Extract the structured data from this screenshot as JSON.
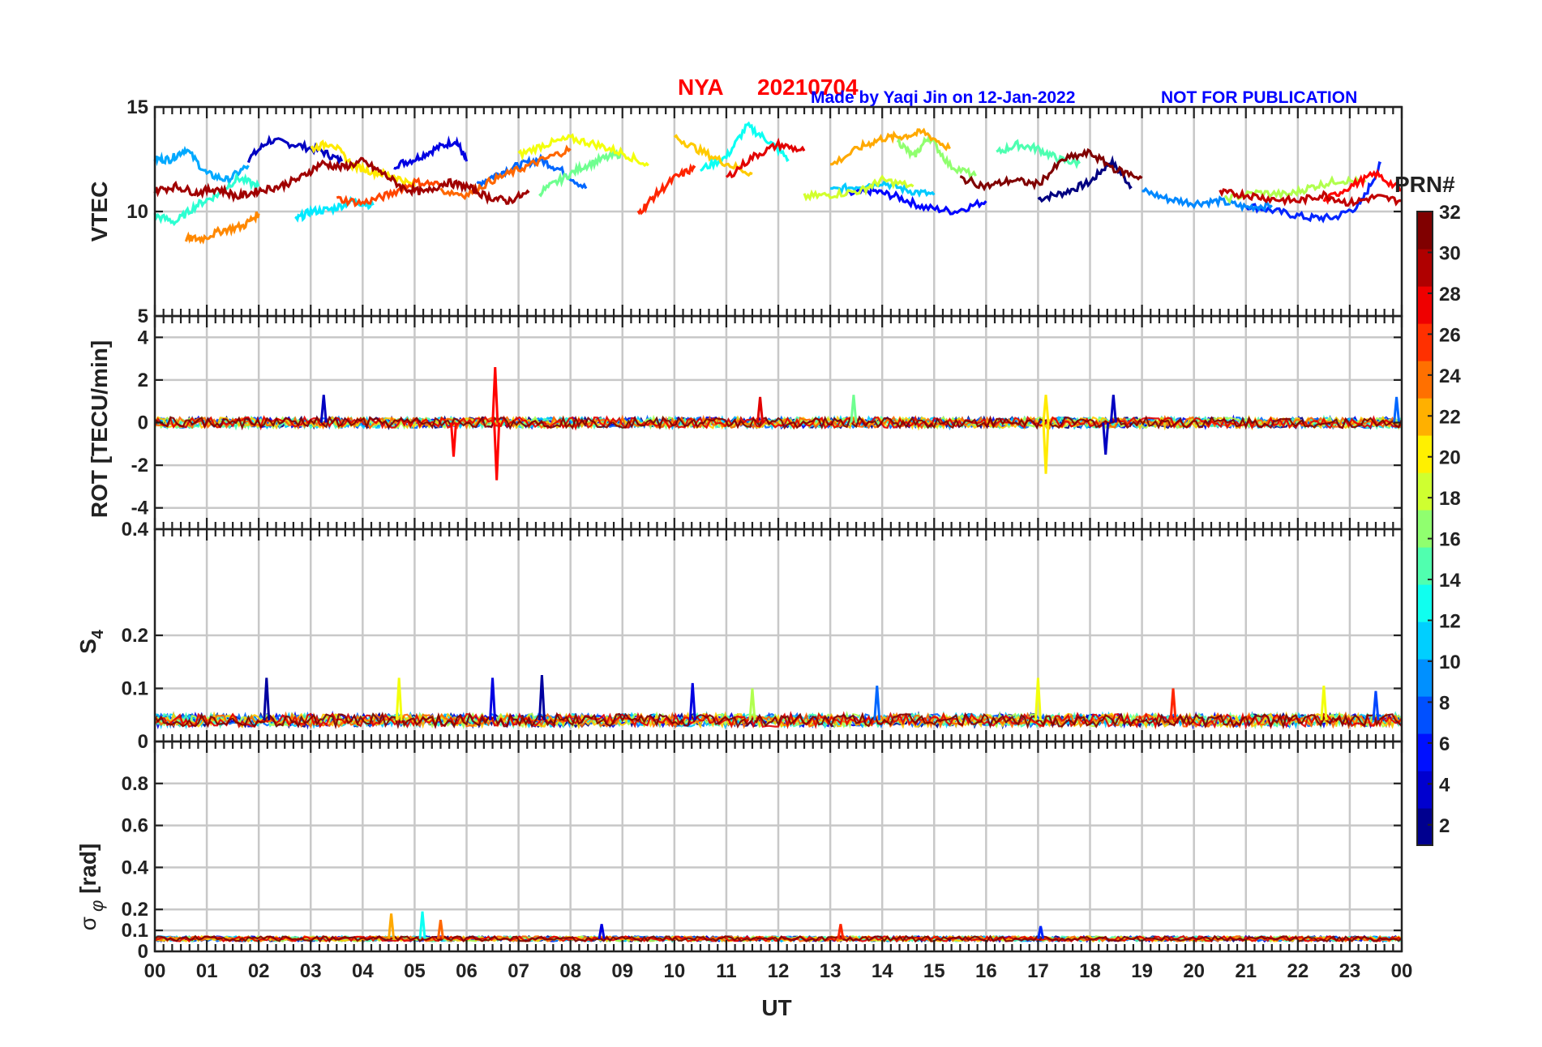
{
  "header": {
    "station": "NYA",
    "date": "20210704",
    "credit": "Made by Yaqi Jin on 12-Jan-2022",
    "notice": "NOT FOR PUBLICATION"
  },
  "chart_data": {
    "type": "line",
    "xlabel": "UT",
    "x_ticks": [
      "00",
      "01",
      "02",
      "03",
      "04",
      "05",
      "06",
      "07",
      "08",
      "09",
      "10",
      "11",
      "12",
      "13",
      "14",
      "15",
      "16",
      "17",
      "18",
      "19",
      "20",
      "21",
      "22",
      "23",
      "00"
    ],
    "xlim_hours": [
      0,
      24
    ],
    "grid": true,
    "colorbar": {
      "label": "PRN#",
      "range": [
        1,
        32
      ],
      "ticks": [
        2,
        4,
        6,
        8,
        10,
        12,
        14,
        16,
        18,
        20,
        22,
        24,
        26,
        28,
        30,
        32
      ],
      "colormap": "jet",
      "colors": [
        "#00008f",
        "#0000cf",
        "#0010ff",
        "#0050ff",
        "#0090ff",
        "#00cfff",
        "#10ffef",
        "#50ffaf",
        "#90ff6f",
        "#cfff30",
        "#fff000",
        "#ffb000",
        "#ff7000",
        "#ff3000",
        "#ef0000",
        "#af0000",
        "#800000"
      ]
    },
    "panels": [
      {
        "id": "vtec",
        "ylabel": "VTEC",
        "ylim": [
          5,
          15
        ],
        "yticks": [
          5,
          10,
          15
        ],
        "series": [
          {
            "prn": 1,
            "x": [
              17.0,
              17.5,
              18.0,
              18.4,
              18.8
            ],
            "y": [
              10.6,
              10.9,
              11.4,
              12.4,
              11.2
            ]
          },
          {
            "prn": 3,
            "x": [
              1.8,
              2.2,
              2.7,
              3.2,
              3.6
            ],
            "y": [
              12.5,
              13.4,
              13.2,
              12.9,
              12.4
            ]
          },
          {
            "prn": 4,
            "x": [
              4.6,
              5.0,
              5.4,
              5.8,
              6.0
            ],
            "y": [
              12.2,
              12.5,
              13.0,
              13.4,
              12.4
            ]
          },
          {
            "prn": 5,
            "x": [
              13.3,
              13.8,
              14.3,
              14.8,
              15.4,
              16.0
            ],
            "y": [
              10.8,
              11.0,
              10.7,
              10.2,
              10.0,
              10.5
            ]
          },
          {
            "prn": 6,
            "x": [
              21.0,
              21.6,
              22.2,
              22.7,
              23.2,
              23.6
            ],
            "y": [
              10.3,
              10.0,
              9.7,
              9.7,
              10.3,
              12.3
            ]
          },
          {
            "prn": 8,
            "x": [
              6.2,
              6.6,
              7.0,
              7.4,
              7.8,
              8.3
            ],
            "y": [
              11.3,
              11.8,
              12.2,
              12.5,
              12.0,
              11.1
            ]
          },
          {
            "prn": 9,
            "x": [
              19.0,
              19.5,
              20.0,
              20.5,
              21.0,
              21.5
            ],
            "y": [
              11.0,
              10.6,
              10.4,
              10.5,
              10.2,
              10.3
            ]
          },
          {
            "prn": 10,
            "x": [
              0.0,
              0.3,
              0.6,
              1.0,
              1.4,
              1.8
            ],
            "y": [
              12.5,
              12.5,
              13.0,
              11.8,
              11.5,
              12.2
            ]
          },
          {
            "prn": 11,
            "x": [
              13.0,
              13.5,
              14.0,
              14.5,
              15.0
            ],
            "y": [
              11.0,
              11.2,
              11.4,
              11.0,
              10.8
            ]
          },
          {
            "prn": 12,
            "x": [
              2.7,
              3.0,
              3.4,
              3.8,
              4.2
            ],
            "y": [
              9.6,
              10.0,
              10.1,
              10.5,
              10.3
            ]
          },
          {
            "prn": 13,
            "x": [
              10.5,
              11.0,
              11.4,
              11.8,
              12.2
            ],
            "y": [
              12.0,
              12.6,
              14.1,
              13.4,
              12.5
            ]
          },
          {
            "prn": 14,
            "x": [
              0.0,
              0.4,
              0.8,
              1.2,
              1.6,
              2.0
            ],
            "y": [
              9.8,
              9.5,
              10.3,
              10.8,
              11.6,
              11.2
            ]
          },
          {
            "prn": 15,
            "x": [
              16.2,
              16.6,
              17.0,
              17.4,
              17.8
            ],
            "y": [
              12.8,
              13.2,
              13.0,
              12.5,
              12.3
            ]
          },
          {
            "prn": 16,
            "x": [
              7.4,
              7.8,
              8.2,
              8.6,
              9.0
            ],
            "y": [
              10.9,
              11.5,
              12.1,
              12.5,
              12.8
            ]
          },
          {
            "prn": 17,
            "x": [
              14.3,
              14.6,
              14.9,
              15.3,
              15.8
            ],
            "y": [
              13.4,
              12.6,
              13.6,
              12.2,
              11.7
            ]
          },
          {
            "prn": 18,
            "x": [
              20.6,
              21.2,
              21.8,
              22.3,
              22.8,
              23.3
            ],
            "y": [
              10.6,
              10.9,
              10.8,
              11.2,
              11.5,
              11.4
            ]
          },
          {
            "prn": 19,
            "x": [
              12.5,
              13.0,
              13.6,
              14.0,
              14.6
            ],
            "y": [
              10.7,
              10.8,
              11.0,
              11.5,
              11.2
            ]
          },
          {
            "prn": 20,
            "x": [
              7.0,
              7.5,
              8.0,
              8.5,
              9.0,
              9.5
            ],
            "y": [
              12.7,
              13.2,
              13.5,
              13.2,
              12.8,
              12.2
            ]
          },
          {
            "prn": 21,
            "x": [
              3.0,
              3.4,
              3.8,
              4.2,
              4.6,
              5.0
            ],
            "y": [
              13.0,
              13.3,
              12.2,
              11.9,
              11.7,
              11.2
            ]
          },
          {
            "prn": 22,
            "x": [
              10.0,
              10.5,
              11.0,
              11.5
            ],
            "y": [
              13.6,
              12.9,
              12.3,
              11.8
            ]
          },
          {
            "prn": 23,
            "x": [
              13.0,
              13.6,
              14.0,
              14.4,
              14.8,
              15.3
            ],
            "y": [
              12.2,
              13.1,
              13.5,
              13.6,
              13.8,
              13.0
            ]
          },
          {
            "prn": 24,
            "x": [
              0.6,
              0.9,
              1.3,
              1.7,
              2.0
            ],
            "y": [
              8.7,
              8.7,
              9.1,
              9.3,
              9.9
            ]
          },
          {
            "prn": 25,
            "x": [
              5.5,
              6.0,
              6.5,
              7.0,
              7.5,
              8.0
            ],
            "y": [
              11.0,
              10.8,
              11.5,
              12.0,
              12.5,
              13.0
            ]
          },
          {
            "prn": 26,
            "x": [
              3.5,
              4.0,
              4.5,
              5.0,
              5.5
            ],
            "y": [
              10.6,
              10.4,
              10.8,
              11.4,
              11.3
            ]
          },
          {
            "prn": 27,
            "x": [
              9.3,
              9.6,
              10.0,
              10.4
            ],
            "y": [
              9.9,
              10.7,
              11.6,
              12.1
            ]
          },
          {
            "prn": 28,
            "x": [
              22.5,
              23.0,
              23.5,
              24.0
            ],
            "y": [
              10.5,
              11.2,
              11.8,
              11.0
            ]
          },
          {
            "prn": 29,
            "x": [
              11.0,
              11.5,
              12.0,
              12.5
            ],
            "y": [
              11.6,
              12.6,
              13.2,
              12.9
            ]
          },
          {
            "prn": 30,
            "x": [
              20.5,
              21.0,
              21.5,
              22.0,
              22.5,
              23.0,
              23.5,
              24.0
            ],
            "y": [
              10.9,
              10.8,
              10.6,
              10.5,
              10.8,
              10.4,
              10.7,
              10.5
            ]
          },
          {
            "prn": 31,
            "x": [
              0.0,
              0.4,
              0.8,
              1.2,
              1.6,
              2.0,
              2.4,
              2.8,
              3.2,
              3.6,
              4.0,
              4.4,
              4.8,
              5.2,
              5.6,
              6.0,
              6.4,
              6.8,
              7.2
            ],
            "y": [
              11.0,
              11.2,
              10.9,
              11.1,
              10.7,
              11.0,
              11.2,
              11.6,
              12.3,
              12.1,
              12.4,
              11.8,
              11.1,
              10.9,
              11.4,
              11.2,
              10.7,
              10.5,
              10.9
            ]
          },
          {
            "prn": 32,
            "x": [
              15.5,
              16.0,
              16.5,
              17.0,
              17.5,
              18.0,
              18.5,
              19.0
            ],
            "y": [
              11.6,
              11.2,
              11.5,
              11.3,
              12.5,
              12.8,
              12.0,
              11.6
            ]
          }
        ]
      },
      {
        "id": "rot",
        "ylabel": "ROT [TECU/min]",
        "ylim": [
          -5,
          5
        ],
        "yticks": [
          -4,
          -2,
          0,
          2,
          4
        ],
        "tick_labels": [
          "-4",
          "-2",
          "0",
          "2",
          "4"
        ],
        "baseline": 0,
        "noise_amplitude": 0.25,
        "spikes": [
          {
            "x": 6.55,
            "y": 2.6,
            "prn": 28
          },
          {
            "x": 6.58,
            "y": -2.7,
            "prn": 28
          },
          {
            "x": 5.75,
            "y": -1.6,
            "prn": 28
          },
          {
            "x": 17.15,
            "y": -2.4,
            "prn": 21
          },
          {
            "x": 17.15,
            "y": 1.3,
            "prn": 21
          },
          {
            "x": 18.3,
            "y": -1.5,
            "prn": 3
          },
          {
            "x": 18.45,
            "y": 1.3,
            "prn": 3
          },
          {
            "x": 11.65,
            "y": 1.2,
            "prn": 29
          },
          {
            "x": 3.25,
            "y": 1.3,
            "prn": 3
          },
          {
            "x": 13.45,
            "y": 1.3,
            "prn": 16
          },
          {
            "x": 23.9,
            "y": 1.2,
            "prn": 8
          }
        ]
      },
      {
        "id": "s4",
        "ylabel": "S4",
        "ylim": [
          0,
          0.4
        ],
        "yticks": [
          0,
          0.1,
          0.2,
          0.4
        ],
        "tick_labels": [
          "0",
          "0.1",
          "0.2",
          "0.4"
        ],
        "baseline": 0.04,
        "noise_amplitude": 0.012,
        "spikes": [
          {
            "x": 2.15,
            "y": 0.12,
            "prn": 2
          },
          {
            "x": 4.7,
            "y": 0.12,
            "prn": 20
          },
          {
            "x": 6.5,
            "y": 0.12,
            "prn": 4
          },
          {
            "x": 7.45,
            "y": 0.125,
            "prn": 2
          },
          {
            "x": 10.35,
            "y": 0.11,
            "prn": 4
          },
          {
            "x": 11.5,
            "y": 0.1,
            "prn": 18
          },
          {
            "x": 13.9,
            "y": 0.105,
            "prn": 8
          },
          {
            "x": 17.0,
            "y": 0.12,
            "prn": 20
          },
          {
            "x": 19.6,
            "y": 0.1,
            "prn": 27
          },
          {
            "x": 22.5,
            "y": 0.105,
            "prn": 20
          },
          {
            "x": 23.5,
            "y": 0.095,
            "prn": 7
          }
        ]
      },
      {
        "id": "sigma",
        "ylabel": "σφ [rad]",
        "ylim": [
          0,
          1
        ],
        "yticks": [
          0,
          0.1,
          0.2,
          0.4,
          0.6,
          0.8
        ],
        "tick_labels": [
          "0",
          "0.1",
          "0.2",
          "0.4",
          "0.6",
          "0.8"
        ],
        "baseline": 0.06,
        "noise_amplitude": 0.012,
        "spikes": [
          {
            "x": 4.55,
            "y": 0.18,
            "prn": 23
          },
          {
            "x": 5.15,
            "y": 0.19,
            "prn": 13
          },
          {
            "x": 5.5,
            "y": 0.15,
            "prn": 25
          },
          {
            "x": 8.6,
            "y": 0.13,
            "prn": 4
          },
          {
            "x": 13.2,
            "y": 0.13,
            "prn": 27
          },
          {
            "x": 17.05,
            "y": 0.12,
            "prn": 6
          }
        ]
      }
    ]
  }
}
